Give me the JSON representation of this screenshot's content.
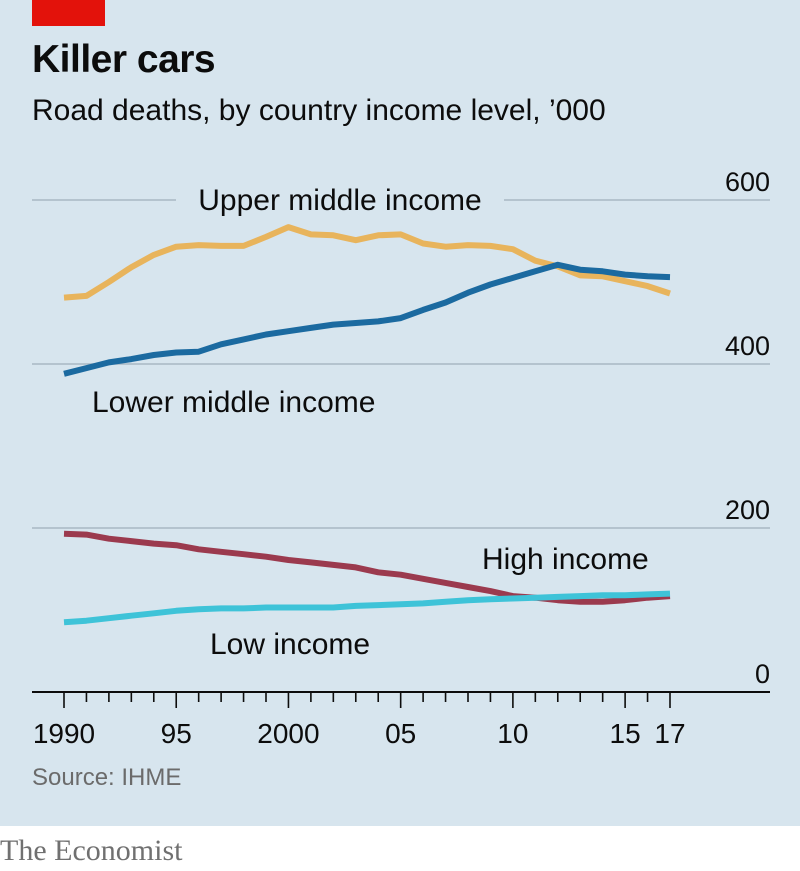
{
  "header": {
    "title": "Killer cars",
    "subtitle": "Road deaths, by country income level, ’000"
  },
  "footer": {
    "source": "Source: IHME",
    "brand": "The Economist"
  },
  "colors": {
    "accent": "#e3120b",
    "background": "#d7e5ee",
    "upper_middle": "#e8b45c",
    "lower_middle": "#1b6aa0",
    "high": "#9b3a4e",
    "low": "#3ec3d8"
  },
  "chart_data": {
    "type": "line",
    "title": "Killer cars",
    "subtitle": "Road deaths, by country income level, ’000",
    "xlabel": "",
    "ylabel": "",
    "x": [
      1990,
      1991,
      1992,
      1993,
      1994,
      1995,
      1996,
      1997,
      1998,
      1999,
      2000,
      2001,
      2002,
      2003,
      2004,
      2005,
      2006,
      2007,
      2008,
      2009,
      2010,
      2011,
      2012,
      2013,
      2014,
      2015,
      2016,
      2017
    ],
    "xlim": [
      1989.5,
      2020
    ],
    "ylim": [
      0,
      600
    ],
    "yticks": [
      0,
      200,
      400,
      600
    ],
    "ytick_labels": [
      "0",
      "200",
      "400",
      "600"
    ],
    "xticks": [
      1990,
      1991,
      1992,
      1993,
      1994,
      1995,
      1996,
      1997,
      1998,
      1999,
      2000,
      2001,
      2002,
      2003,
      2004,
      2005,
      2006,
      2007,
      2008,
      2009,
      2010,
      2011,
      2012,
      2013,
      2014,
      2015,
      2016,
      2017
    ],
    "xtick_labels": [
      {
        "x": 1990,
        "label": "1990"
      },
      {
        "x": 1995,
        "label": "95"
      },
      {
        "x": 2000,
        "label": "2000"
      },
      {
        "x": 2005,
        "label": "05"
      },
      {
        "x": 2010,
        "label": "10"
      },
      {
        "x": 2015,
        "label": "15"
      },
      {
        "x": 2017,
        "label": "17"
      }
    ],
    "grid": true,
    "series": [
      {
        "name": "Upper middle income",
        "color": "#e8b45c",
        "values": [
          481,
          483,
          500,
          518,
          533,
          543,
          545,
          544,
          544,
          555,
          567,
          558,
          557,
          551,
          557,
          558,
          547,
          543,
          545,
          544,
          540,
          526,
          519,
          508,
          507,
          501,
          495,
          486
        ]
      },
      {
        "name": "Lower middle income",
        "color": "#1b6aa0",
        "values": [
          388,
          395,
          402,
          406,
          411,
          414,
          415,
          424,
          430,
          436,
          440,
          444,
          448,
          450,
          452,
          456,
          466,
          475,
          487,
          497,
          505,
          513,
          521,
          515,
          513,
          509,
          507,
          506
        ]
      },
      {
        "name": "High income",
        "color": "#9b3a4e",
        "values": [
          193,
          192,
          187,
          184,
          181,
          179,
          174,
          171,
          168,
          165,
          161,
          158,
          155,
          152,
          146,
          143,
          138,
          133,
          128,
          123,
          117,
          115,
          112,
          110,
          110,
          112,
          115,
          117
        ]
      },
      {
        "name": "Low income",
        "color": "#3ec3d8",
        "values": [
          85,
          87,
          90,
          93,
          96,
          99,
          101,
          102,
          102,
          103,
          103,
          103,
          103,
          105,
          106,
          107,
          108,
          110,
          112,
          113,
          114,
          115,
          116,
          117,
          118,
          118,
          119,
          120
        ]
      }
    ],
    "annotations": [
      {
        "text": "Upper middle income",
        "series": "Upper middle income"
      },
      {
        "text": "Lower middle income",
        "series": "Lower middle income"
      },
      {
        "text": "High income",
        "series": "High income"
      },
      {
        "text": "Low income",
        "series": "Low income"
      }
    ]
  }
}
